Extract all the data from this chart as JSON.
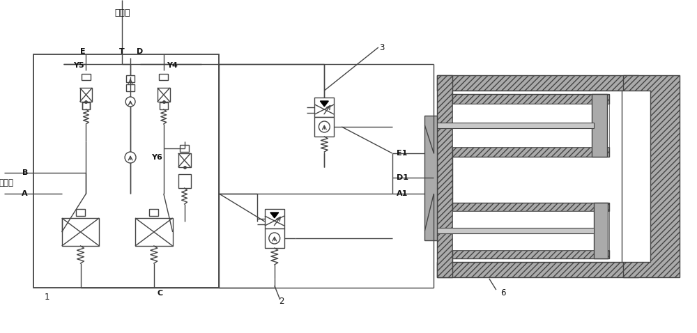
{
  "bg_color": "#ffffff",
  "line_color": "#444444",
  "label_color": "#111111",
  "fig_width": 10.0,
  "fig_height": 4.78,
  "labels": {
    "huiyoulu": "回油路",
    "zhuyoulu": "主油路",
    "E": "E",
    "T": "T",
    "D": "D",
    "Y5": "Y5",
    "Y4": "Y4",
    "Y6": "Y6",
    "B": "B",
    "A": "A",
    "C": "C",
    "num1": "1",
    "num2": "2",
    "num3": "3",
    "num6": "6",
    "E1": "E1",
    "D1": "D1",
    "A1": "A1"
  }
}
